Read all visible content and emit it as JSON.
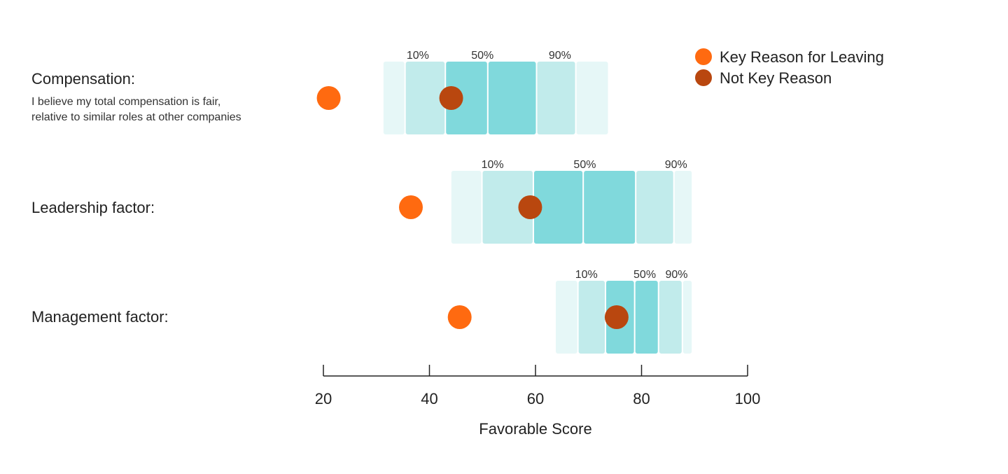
{
  "chart_data": {
    "type": "dot-band",
    "xlabel": "Favorable Score",
    "xlim": [
      20,
      100
    ],
    "xticks": [
      20,
      40,
      60,
      80,
      100
    ],
    "band_labels": [
      "10%",
      "50%",
      "90%"
    ],
    "legend": {
      "placement": "top-right",
      "items": [
        {
          "name": "Key Reason for Leaving",
          "color": "#ff6a10"
        },
        {
          "name": "Not Key Reason",
          "color": "#b9470f"
        }
      ]
    },
    "colors": {
      "outer": "#e6f7f7",
      "mid": "#c1ebeb",
      "inner": "#80d9dc",
      "axis": "#222222"
    },
    "rows": [
      {
        "title": "Compensation:",
        "subtitle": [
          "I believe my total compensation is fair,",
          "relative to similar roles at other companies"
        ],
        "outer": [
          31.2,
          73.8
        ],
        "mid": [
          35.4,
          67.6
        ],
        "inner": [
          43.0,
          60.2
        ],
        "median": 51.0,
        "quantiles": {
          "p10": 37.8,
          "p50": 50.0,
          "p90": 64.6
        },
        "key_reason": 21.0,
        "not_key_reason": 44.1
      },
      {
        "title": "Leadership factor:",
        "subtitle": [],
        "outer": [
          44.0,
          89.6
        ],
        "mid": [
          49.9,
          86.1
        ],
        "inner": [
          59.6,
          78.9
        ],
        "median": 69.0,
        "quantiles": {
          "p10": 51.9,
          "p50": 69.3,
          "p90": 86.5
        },
        "key_reason": 36.5,
        "not_key_reason": 59.0
      },
      {
        "title": "Management factor:",
        "subtitle": [],
        "outer": [
          63.7,
          89.6
        ],
        "mid": [
          68.0,
          87.7
        ],
        "inner": [
          73.2,
          83.2
        ],
        "median": 78.7,
        "quantiles": {
          "p10": 69.6,
          "p50": 80.6,
          "p90": 86.6
        },
        "key_reason": 45.7,
        "not_key_reason": 75.3
      }
    ]
  }
}
